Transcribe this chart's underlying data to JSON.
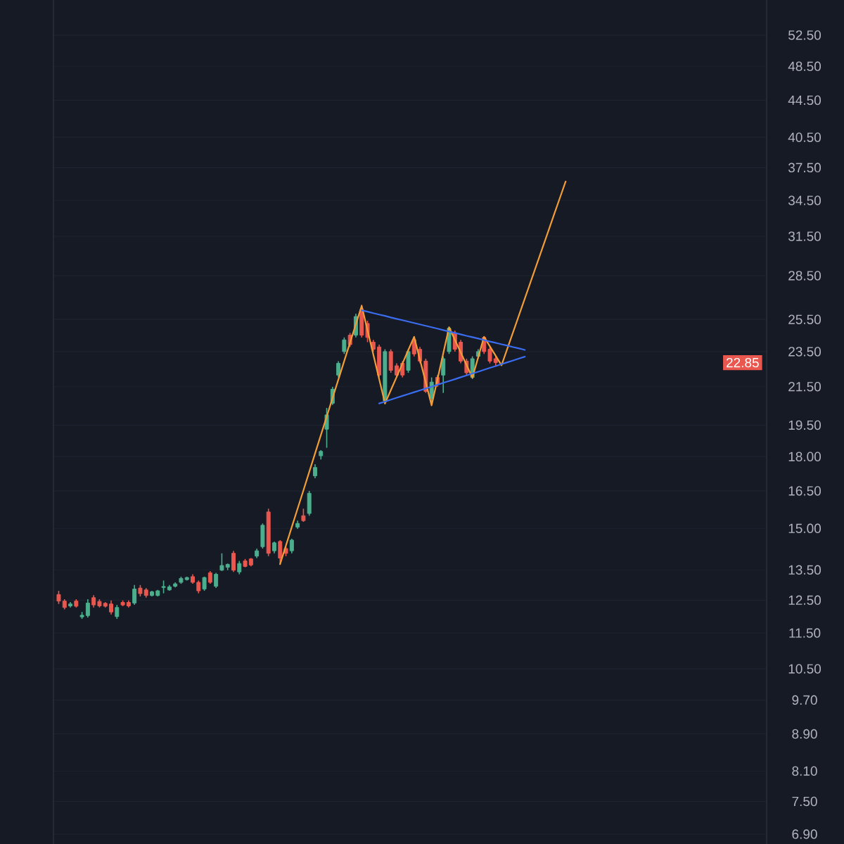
{
  "chart_data": {
    "type": "candlestick",
    "categories": [
      null,
      null,
      null,
      null,
      null,
      null,
      null,
      null,
      null,
      null,
      null,
      null,
      null,
      null,
      null,
      null,
      null,
      null,
      null,
      null,
      null,
      null,
      null,
      null,
      null,
      null,
      null,
      null,
      null,
      null,
      null,
      null,
      null,
      null,
      null,
      null,
      null,
      null,
      null,
      null,
      null,
      null,
      null,
      null,
      null,
      null,
      null,
      null,
      null,
      null,
      null,
      null,
      null,
      null,
      null,
      null,
      null,
      null,
      null,
      null,
      null,
      null,
      null,
      null,
      null,
      null,
      null,
      null,
      null,
      null,
      null,
      null,
      null,
      null,
      null,
      null,
      null,
      null,
      null,
      null,
      null,
      null,
      null,
      null,
      null,
      null,
      null,
      null,
      null,
      null,
      null,
      null,
      null,
      null,
      null,
      null,
      null,
      null,
      null,
      null,
      null,
      null,
      null,
      null,
      null,
      null,
      null,
      null,
      null,
      null,
      null,
      null,
      null,
      null,
      null,
      null,
      null,
      null,
      null,
      null,
      null,
      null
    ],
    "ohlc": [
      [
        12.68,
        12.8,
        12.38,
        12.47
      ],
      [
        12.47,
        12.53,
        12.21,
        12.27
      ],
      [
        12.32,
        12.44,
        12.27,
        12.38
      ],
      [
        12.47,
        12.53,
        12.27,
        12.31
      ],
      [
        11.98,
        12.13,
        11.92,
        12.03
      ],
      [
        12.02,
        12.53,
        11.96,
        12.41
      ],
      [
        12.58,
        12.66,
        12.27,
        12.35
      ],
      [
        12.46,
        12.53,
        12.27,
        12.32
      ],
      [
        12.4,
        12.44,
        12.27,
        12.31
      ],
      [
        12.38,
        12.49,
        12.05,
        12.13
      ],
      [
        11.99,
        12.35,
        11.92,
        12.27
      ],
      [
        12.43,
        12.49,
        12.31,
        12.35
      ],
      [
        12.43,
        12.49,
        12.27,
        12.32
      ],
      [
        12.41,
        12.99,
        12.35,
        12.86
      ],
      [
        12.89,
        12.99,
        12.62,
        12.71
      ],
      [
        12.83,
        12.89,
        12.58,
        12.65
      ],
      [
        12.65,
        12.8,
        12.62,
        12.77
      ],
      [
        12.65,
        12.83,
        12.62,
        12.8
      ],
      [
        12.91,
        13.14,
        12.72,
        12.94
      ],
      [
        12.83,
        12.99,
        12.8,
        12.93
      ],
      [
        12.95,
        13.08,
        12.91,
        13.03
      ],
      [
        13.08,
        13.27,
        13.03,
        13.21
      ],
      [
        13.17,
        13.27,
        13.14,
        13.24
      ],
      [
        13.27,
        13.35,
        13.03,
        13.08
      ],
      [
        13.08,
        13.14,
        12.72,
        12.8
      ],
      [
        12.86,
        13.27,
        12.8,
        13.24
      ],
      [
        13.4,
        13.46,
        13.03,
        13.08
      ],
      [
        12.95,
        13.4,
        12.89,
        13.35
      ],
      [
        13.49,
        14.08,
        13.46,
        13.65
      ],
      [
        13.59,
        13.72,
        13.49,
        13.69
      ],
      [
        14.08,
        14.17,
        13.43,
        13.49
      ],
      [
        13.43,
        13.81,
        13.35,
        13.72
      ],
      [
        13.81,
        13.88,
        13.59,
        13.62
      ],
      [
        13.88,
        13.91,
        13.62,
        13.67
      ],
      [
        13.98,
        14.25,
        13.91,
        14.17
      ],
      [
        14.32,
        15.19,
        14.25,
        15.12
      ],
      [
        15.64,
        15.77,
        13.98,
        14.08
      ],
      [
        14.17,
        14.51,
        14.08,
        14.46
      ],
      [
        14.51,
        14.56,
        13.67,
        13.91
      ],
      [
        14.25,
        14.32,
        13.98,
        14.08
      ],
      [
        14.17,
        14.61,
        14.08,
        14.56
      ],
      [
        15.05,
        15.3,
        14.98,
        15.19
      ],
      [
        15.49,
        15.77,
        15.25,
        15.3
      ],
      [
        15.58,
        16.5,
        15.49,
        16.4
      ],
      [
        17.14,
        17.66,
        17.04,
        17.51
      ],
      [
        18.04,
        18.3,
        17.87,
        18.24
      ],
      [
        19.3,
        20.37,
        18.41,
        20.01
      ],
      [
        20.61,
        21.49,
        20.52,
        21.36
      ],
      [
        22.14,
        22.94,
        22.01,
        22.81
      ],
      [
        23.5,
        24.36,
        23.36,
        24.21
      ],
      [
        24.5,
        24.64,
        23.78,
        23.92
      ],
      [
        24.5,
        25.88,
        24.36,
        25.69
      ],
      [
        26.16,
        26.47,
        24.36,
        24.5
      ],
      [
        25.24,
        25.42,
        24.07,
        24.36
      ],
      [
        24.07,
        24.21,
        23.5,
        23.64
      ],
      [
        23.78,
        23.92,
        22.01,
        22.14
      ],
      [
        20.74,
        23.64,
        20.57,
        23.5
      ],
      [
        23.5,
        23.64,
        22.27,
        22.41
      ],
      [
        22.67,
        22.81,
        22.01,
        22.14
      ],
      [
        22.81,
        22.94,
        22.01,
        22.14
      ],
      [
        22.41,
        23.64,
        22.27,
        23.5
      ],
      [
        24.21,
        24.36,
        23.22,
        23.36
      ],
      [
        23.64,
        23.78,
        22.81,
        22.94
      ],
      [
        22.94,
        23.08,
        21.16,
        21.24
      ],
      [
        20.86,
        22.01,
        20.57,
        21.75
      ],
      [
        22.01,
        22.14,
        21.49,
        21.62
      ],
      [
        22.14,
        23.22,
        21.16,
        23.08
      ],
      [
        23.5,
        25.03,
        23.36,
        24.94
      ],
      [
        24.64,
        24.79,
        23.5,
        23.64
      ],
      [
        24.07,
        24.21,
        22.81,
        22.94
      ],
      [
        22.94,
        23.08,
        22.14,
        22.27
      ],
      [
        22.01,
        23.22,
        21.92,
        23.08
      ],
      [
        23.22,
        23.64,
        23.08,
        23.5
      ],
      [
        24.36,
        24.42,
        23.36,
        23.5
      ],
      [
        23.64,
        23.78,
        22.81,
        22.94
      ],
      [
        23.08,
        23.22,
        22.67,
        22.85
      ],
      null,
      null,
      null,
      null,
      null,
      null,
      null,
      null,
      null,
      null,
      null,
      null,
      null,
      null,
      null,
      null,
      null,
      null,
      null,
      null,
      null,
      null,
      null,
      null,
      null,
      null,
      null,
      null,
      null,
      null,
      null,
      null,
      null,
      null,
      null,
      null,
      null,
      null,
      null,
      null,
      null,
      null,
      null,
      null,
      null,
      null
    ],
    "colors": [
      "#e9574e",
      "#e9574e",
      "#4bae8d",
      "#e9574e",
      "#4bae8d",
      "#4bae8d",
      "#e9574e",
      "#e9574e",
      "#e9574e",
      "#e9574e",
      "#4bae8d",
      "#e9574e",
      "#e9574e",
      "#4bae8d",
      "#e9574e",
      "#e9574e",
      "#4bae8d",
      "#4bae8d",
      "#4bae8d",
      "#4bae8d",
      "#4bae8d",
      "#4bae8d",
      "#4bae8d",
      "#e9574e",
      "#e9574e",
      "#4bae8d",
      "#e9574e",
      "#4bae8d",
      "#4bae8d",
      "#4bae8d",
      "#e9574e",
      "#4bae8d",
      "#e9574e",
      "#e9574e",
      "#4bae8d",
      "#4bae8d",
      "#e9574e",
      "#4bae8d",
      "#e9574e",
      "#e9574e",
      "#4bae8d",
      "#4bae8d",
      "#e9574e",
      "#4bae8d",
      "#4bae8d",
      "#4bae8d",
      "#4bae8d",
      "#4bae8d",
      "#4bae8d",
      "#4bae8d",
      "#e9574e",
      "#4bae8d",
      "#e9574e",
      "#e9574e",
      "#e9574e",
      "#e9574e",
      "#4bae8d",
      "#e9574e",
      "#e9574e",
      "#e9574e",
      "#4bae8d",
      "#e9574e",
      "#e9574e",
      "#e9574e",
      "#4bae8d",
      "#e9574e",
      "#4bae8d",
      "#4bae8d",
      "#e9574e",
      "#e9574e",
      "#e9574e",
      "#4bae8d",
      "#4bae8d",
      "#e9574e",
      "#e9574e",
      "#e9574e",
      null,
      null,
      null,
      null,
      null,
      null,
      null,
      null,
      null,
      null,
      null,
      null,
      null,
      null,
      null,
      null,
      null,
      null,
      null,
      null,
      null,
      null,
      null,
      null,
      null,
      null,
      null,
      null,
      null,
      null,
      null,
      null,
      null,
      null,
      null,
      null,
      null,
      null,
      null,
      null,
      null,
      null,
      null,
      null,
      null,
      null
    ],
    "series": [
      {
        "type": "line",
        "color": "#f29d38",
        "values": [
          null,
          null,
          null,
          null,
          null,
          null,
          null,
          null,
          null,
          null,
          null,
          null,
          null,
          null,
          null,
          null,
          null,
          null,
          null,
          null,
          null,
          null,
          null,
          null,
          null,
          null,
          null,
          null,
          null,
          null,
          null,
          null,
          null,
          null,
          null,
          null,
          null,
          null,
          13.7,
          14.36,
          15.05,
          15.77,
          16.52,
          17.32,
          18.15,
          19.02,
          19.93,
          20.89,
          21.89,
          22.94,
          24.04,
          25.19,
          26.4,
          24.81,
          23.32,
          21.92,
          20.6,
          21.31,
          22.04,
          22.8,
          23.59,
          24.4,
          23.02,
          21.73,
          20.5,
          21.9,
          23.4,
          25.0,
          24.21,
          23.45,
          22.71,
          22.0,
          23.17,
          24.4,
          23.82,
          23.25,
          22.7,
          23.68,
          24.71,
          25.78,
          26.9,
          28.06,
          29.28,
          30.55,
          31.87,
          33.26,
          34.7,
          36.2,
          null,
          null,
          null,
          null,
          null,
          null,
          null,
          null,
          null,
          null,
          null,
          null,
          null,
          null,
          null,
          null,
          null,
          null,
          null,
          null,
          null,
          null,
          null,
          null,
          null,
          null,
          null,
          null,
          null,
          null,
          null,
          null,
          null,
          null
        ]
      },
      {
        "type": "line",
        "color": "#3a6df0",
        "values": [
          null,
          null,
          null,
          null,
          null,
          null,
          null,
          null,
          null,
          null,
          null,
          null,
          null,
          null,
          null,
          null,
          null,
          null,
          null,
          null,
          null,
          null,
          null,
          null,
          null,
          null,
          null,
          null,
          null,
          null,
          null,
          null,
          null,
          null,
          null,
          null,
          null,
          null,
          null,
          null,
          null,
          null,
          null,
          null,
          null,
          null,
          null,
          null,
          null,
          null,
          null,
          null,
          26.1,
          26.01,
          25.91,
          25.82,
          25.73,
          25.63,
          25.54,
          25.45,
          25.36,
          25.27,
          25.18,
          25.09,
          25.0,
          24.91,
          24.82,
          24.73,
          24.64,
          24.55,
          24.46,
          24.38,
          24.29,
          24.2,
          24.11,
          24.03,
          23.94,
          23.86,
          23.77,
          23.69,
          23.6,
          null,
          null,
          null,
          null,
          null,
          null,
          null,
          null,
          null,
          null,
          null,
          null,
          null,
          null,
          null,
          null,
          null,
          null,
          null,
          null,
          null,
          null,
          null,
          null,
          null,
          null,
          null,
          null,
          null,
          null,
          null,
          null,
          null,
          null,
          null,
          null,
          null,
          null,
          null,
          null,
          null
        ]
      },
      {
        "type": "line",
        "color": "#3a6df0",
        "values": [
          null,
          null,
          null,
          null,
          null,
          null,
          null,
          null,
          null,
          null,
          null,
          null,
          null,
          null,
          null,
          null,
          null,
          null,
          null,
          null,
          null,
          null,
          null,
          null,
          null,
          null,
          null,
          null,
          null,
          null,
          null,
          null,
          null,
          null,
          null,
          null,
          null,
          null,
          null,
          null,
          null,
          null,
          null,
          null,
          null,
          null,
          null,
          null,
          null,
          null,
          null,
          null,
          null,
          null,
          null,
          20.6,
          20.7,
          20.8,
          20.9,
          21.0,
          21.1,
          21.2,
          21.3,
          21.4,
          21.5,
          21.6,
          21.71,
          21.81,
          21.91,
          22.02,
          22.12,
          22.23,
          22.33,
          22.44,
          22.55,
          22.65,
          22.76,
          22.87,
          22.98,
          23.09,
          23.2,
          null,
          null,
          null,
          null,
          null,
          null,
          null,
          null,
          null,
          null,
          null,
          null,
          null,
          null,
          null,
          null,
          null,
          null,
          null,
          null,
          null,
          null,
          null,
          null,
          null,
          null,
          null,
          null,
          null,
          null,
          null,
          null,
          null,
          null,
          null,
          null,
          null,
          null,
          null,
          null,
          null
        ]
      }
    ],
    "ylim": [
      6.73,
      57.4
    ],
    "yticks": [
      {
        "value": 6.9,
        "label": "6.90"
      },
      {
        "value": 7.5,
        "label": "7.50"
      },
      {
        "value": 8.1,
        "label": "8.10"
      },
      {
        "value": 8.9,
        "label": "8.90"
      },
      {
        "value": 9.7,
        "label": "9.70"
      },
      {
        "value": 10.5,
        "label": "10.50"
      },
      {
        "value": 11.5,
        "label": "11.50"
      },
      {
        "value": 12.5,
        "label": "12.50"
      },
      {
        "value": 13.5,
        "label": "13.50"
      },
      {
        "value": 15,
        "label": "15.00"
      },
      {
        "value": 16.5,
        "label": "16.50"
      },
      {
        "value": 18,
        "label": "18.00"
      },
      {
        "value": 19.5,
        "label": "19.50"
      },
      {
        "value": 21.5,
        "label": "21.50"
      },
      {
        "value": 23.5,
        "label": "23.50"
      },
      {
        "value": 25.5,
        "label": "25.50"
      },
      {
        "value": 28.5,
        "label": "28.50"
      },
      {
        "value": 31.5,
        "label": "31.50"
      },
      {
        "value": 34.5,
        "label": "34.50"
      },
      {
        "value": 37.5,
        "label": "37.50"
      },
      {
        "value": 40.5,
        "label": "40.50"
      },
      {
        "value": 44.5,
        "label": "44.50"
      },
      {
        "value": 48.5,
        "label": "48.50"
      },
      {
        "value": 52.5,
        "label": "52.50"
      }
    ],
    "log": true,
    "grid": "y",
    "tick_labels": "y",
    "annotations": [
      {
        "text": "22.85",
        "y": 22.85
      }
    ]
  }
}
